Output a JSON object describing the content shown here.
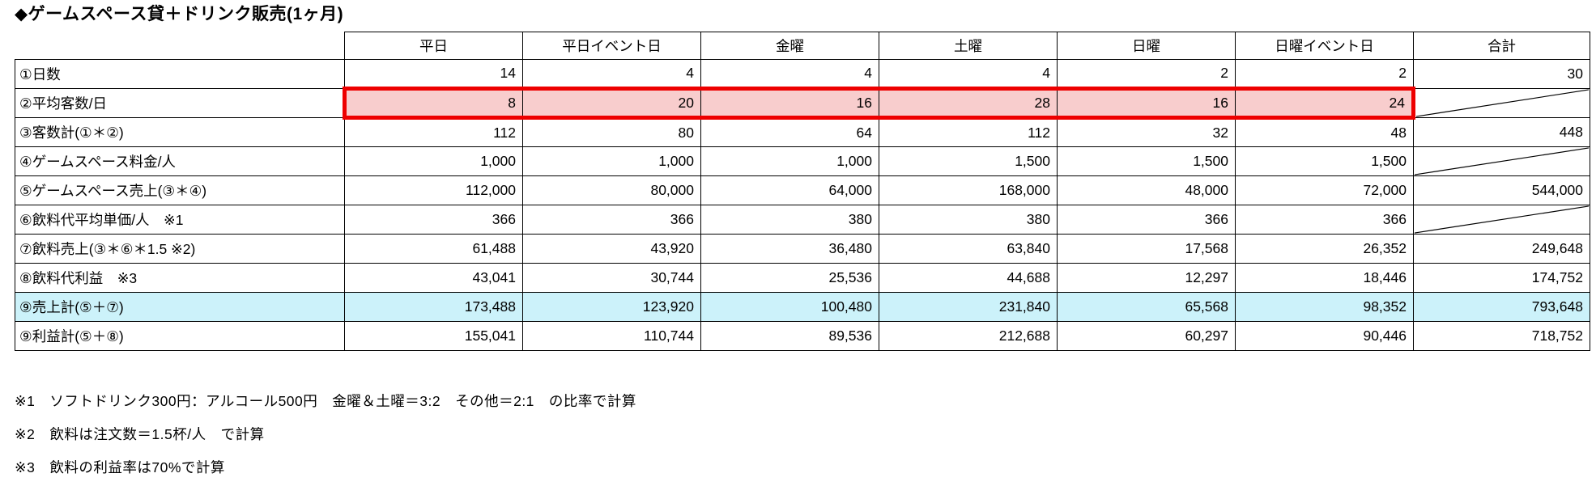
{
  "title": "◆ゲームスペース貸＋ドリンク販売(1ヶ月)",
  "table": {
    "columns": [
      "平日",
      "平日イベント日",
      "金曜",
      "土曜",
      "日曜",
      "日曜イベント日",
      "合計"
    ],
    "rows": [
      {
        "label": "①日数",
        "values": [
          "14",
          "4",
          "4",
          "4",
          "2",
          "2"
        ],
        "total": "30",
        "diagonal": false,
        "highlight": "none"
      },
      {
        "label": "②平均客数/日",
        "values": [
          "8",
          "20",
          "16",
          "28",
          "16",
          "24"
        ],
        "total": null,
        "diagonal": true,
        "highlight": "red"
      },
      {
        "label": "③客数計(①＊②)",
        "values": [
          "112",
          "80",
          "64",
          "112",
          "32",
          "48"
        ],
        "total": "448",
        "diagonal": false,
        "highlight": "none"
      },
      {
        "label": "④ゲームスペース料金/人",
        "values": [
          "1,000",
          "1,000",
          "1,000",
          "1,500",
          "1,500",
          "1,500"
        ],
        "total": null,
        "diagonal": true,
        "highlight": "none"
      },
      {
        "label": "⑤ゲームスペース売上(③＊④)",
        "values": [
          "112,000",
          "80,000",
          "64,000",
          "168,000",
          "48,000",
          "72,000"
        ],
        "total": "544,000",
        "diagonal": false,
        "highlight": "none"
      },
      {
        "label": "⑥飲料代平均単価/人　※1",
        "values": [
          "366",
          "366",
          "380",
          "380",
          "366",
          "366"
        ],
        "total": null,
        "diagonal": true,
        "highlight": "none"
      },
      {
        "label": "⑦飲料売上(③＊⑥＊1.5 ※2)",
        "values": [
          "61,488",
          "43,920",
          "36,480",
          "63,840",
          "17,568",
          "26,352"
        ],
        "total": "249,648",
        "diagonal": false,
        "highlight": "none"
      },
      {
        "label": "⑧飲料代利益　※3",
        "values": [
          "43,041",
          "30,744",
          "25,536",
          "44,688",
          "12,297",
          "18,446"
        ],
        "total": "174,752",
        "diagonal": false,
        "highlight": "none"
      },
      {
        "label": "⑨売上計(⑤＋⑦)",
        "values": [
          "173,488",
          "123,920",
          "100,480",
          "231,840",
          "65,568",
          "98,352"
        ],
        "total": "793,648",
        "diagonal": false,
        "highlight": "cyan"
      },
      {
        "label": "⑨利益計(⑤＋⑧)",
        "values": [
          "155,041",
          "110,744",
          "89,536",
          "212,688",
          "60,297",
          "90,446"
        ],
        "total": "718,752",
        "diagonal": false,
        "highlight": "none"
      }
    ]
  },
  "footnotes": [
    "※1　ソフトドリンク300円：アルコール500円　金曜＆土曜＝3:2　その他＝2:1　の比率で計算",
    "※2　飲料は注文数＝1.5杯/人　で計算",
    "※3　飲料の利益率は70%で計算"
  ],
  "colors": {
    "highlight_red_border": "#EE0000",
    "highlight_pink_fill": "#F8CDCD",
    "highlight_cyan_fill": "#CCF2FA"
  }
}
